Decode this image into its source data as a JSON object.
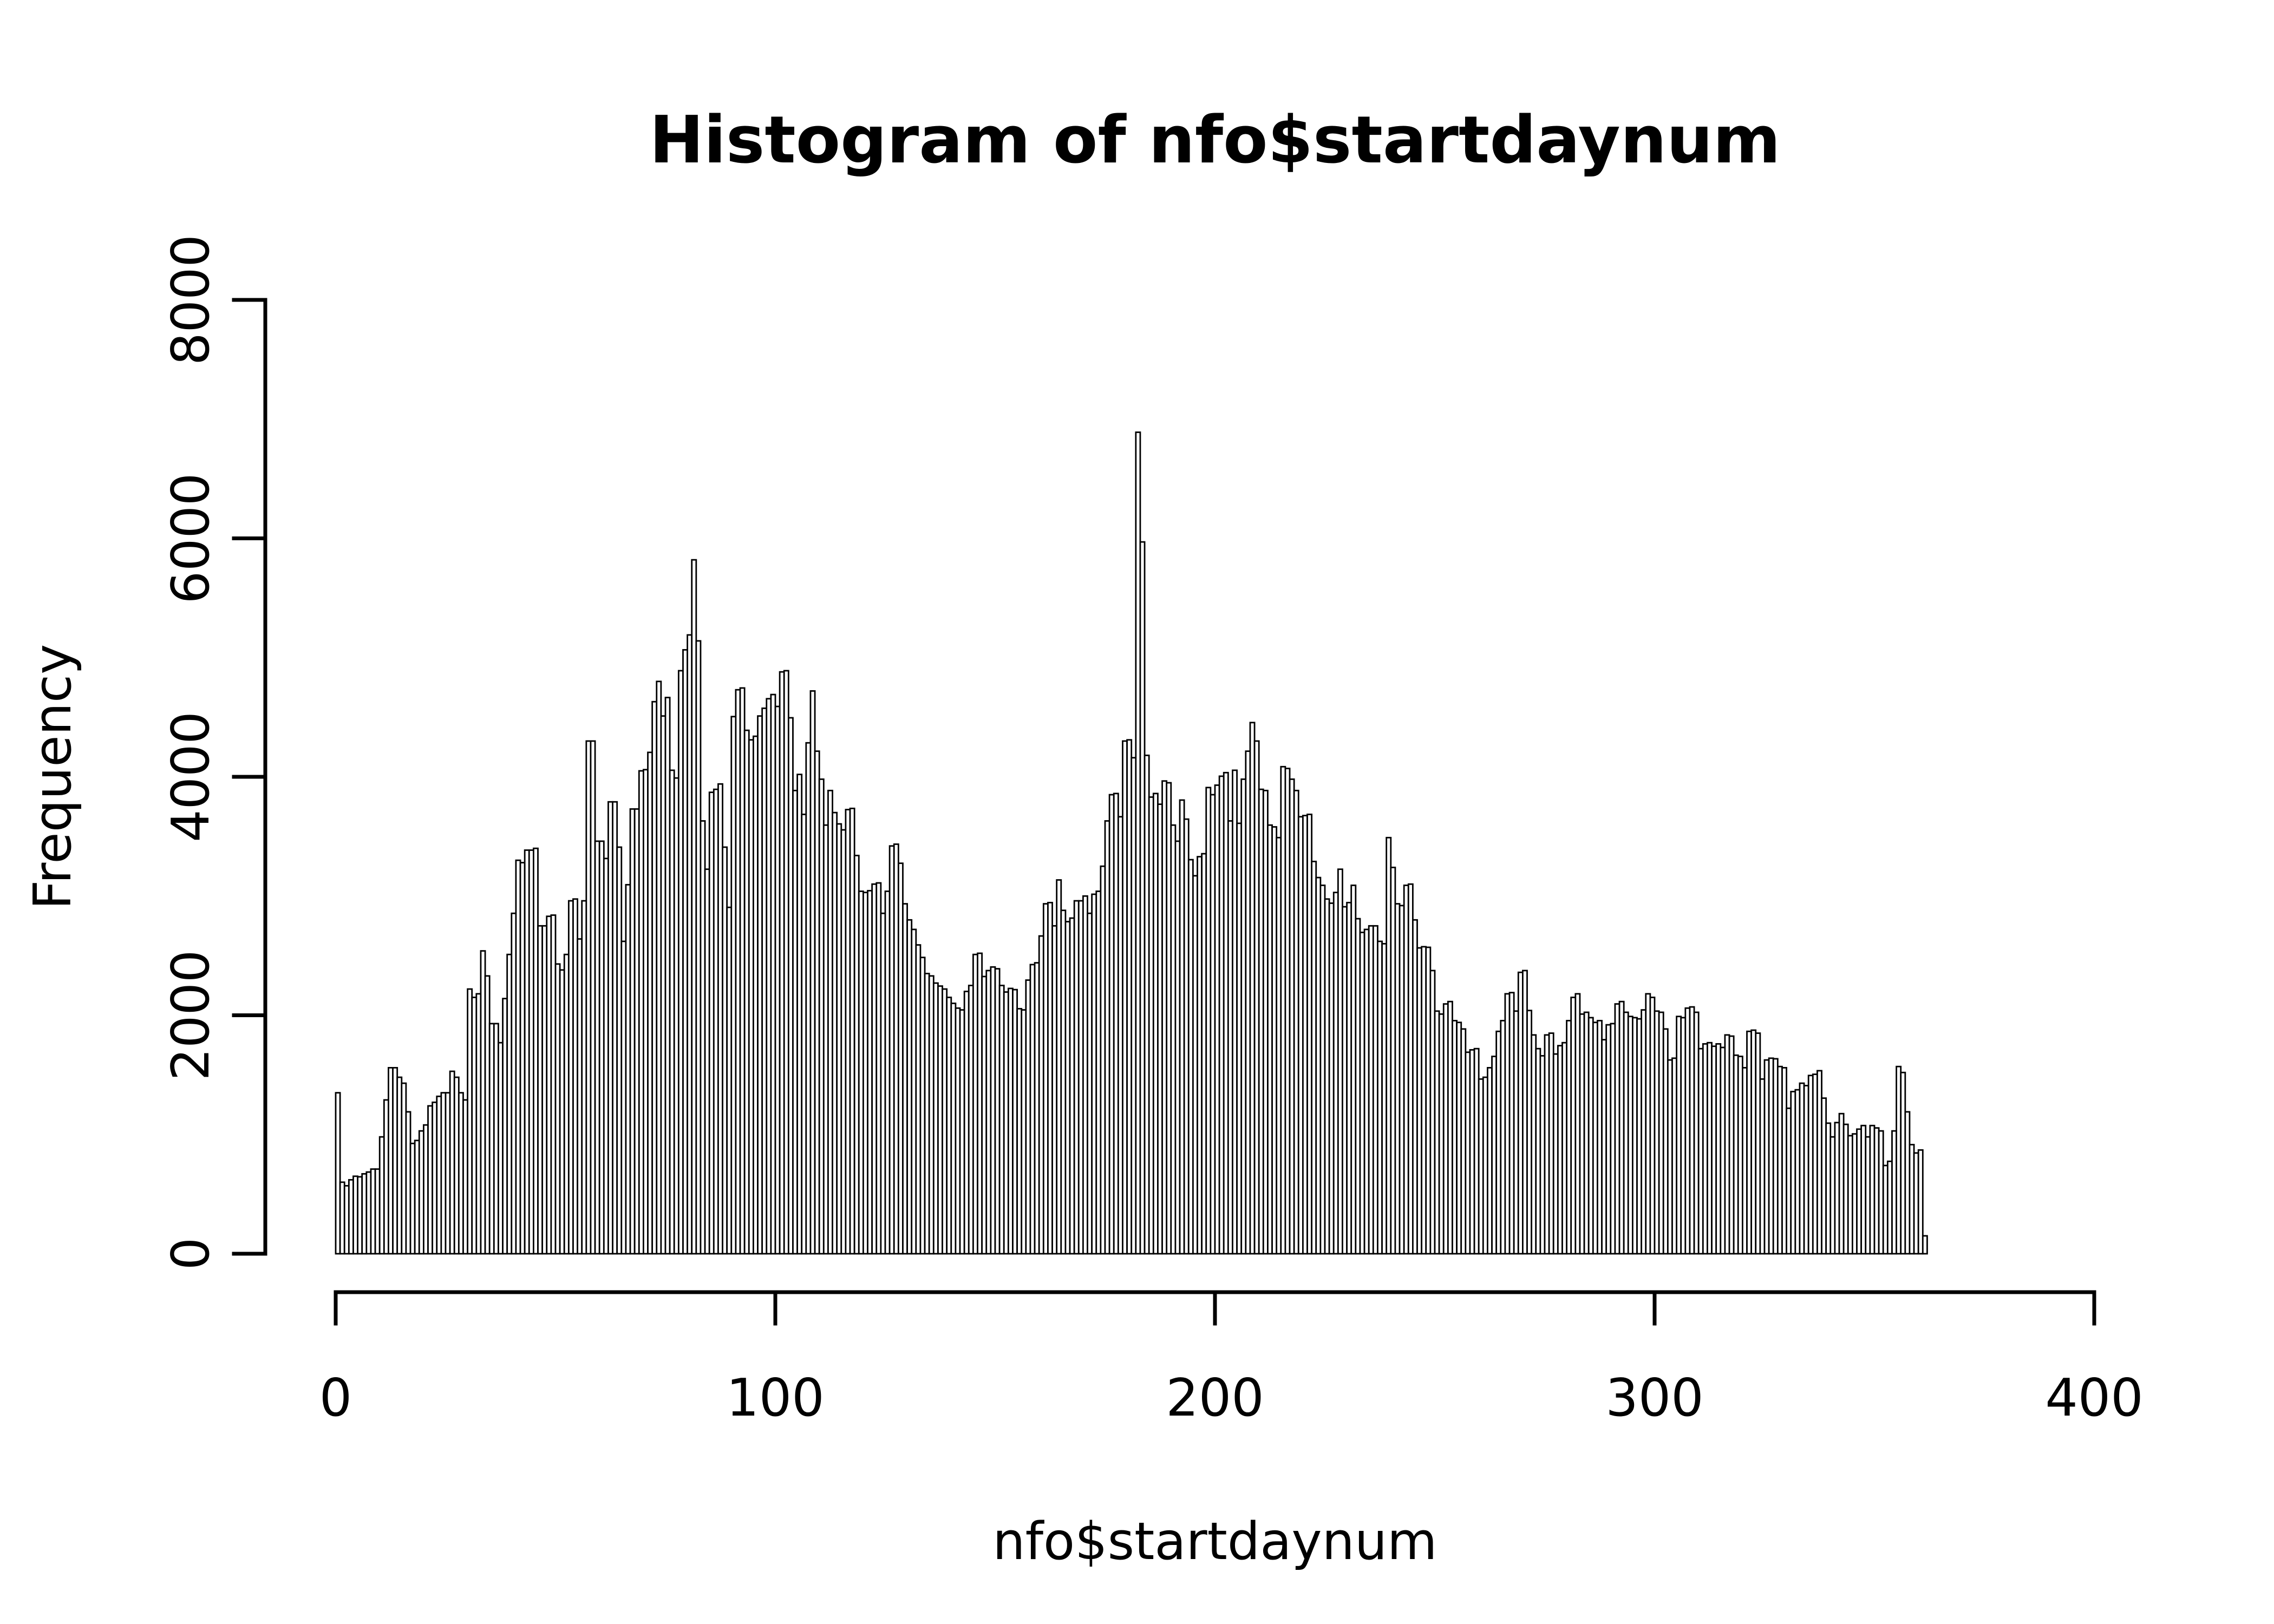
{
  "figure": {
    "background": "#ffffff",
    "foreground": "#000000"
  },
  "chart_data": {
    "type": "bar",
    "subtype": "histogram",
    "title": "Histogram of nfo$startdaynum",
    "xlabel": "nfo$startdaynum",
    "ylabel": "Frequency",
    "xlim": [
      0,
      400
    ],
    "ylim": [
      0,
      8000
    ],
    "x_ticks": [
      0,
      100,
      200,
      300,
      400
    ],
    "y_ticks": [
      0,
      2000,
      4000,
      6000,
      8000
    ],
    "grid": false,
    "legend": null,
    "bar_fill": "#ffffff",
    "bar_stroke": "#000000",
    "bin_start": 0,
    "bin_width": 1,
    "values": [
      1350,
      600,
      570,
      620,
      650,
      645,
      670,
      685,
      710,
      710,
      980,
      1290,
      1560,
      1560,
      1480,
      1430,
      1190,
      925,
      950,
      1030,
      1080,
      1240,
      1270,
      1320,
      1350,
      1350,
      1530,
      1480,
      1350,
      1290,
      2220,
      2150,
      2180,
      2540,
      2330,
      1930,
      1930,
      1770,
      2140,
      2510,
      2855,
      3300,
      3280,
      3385,
      3385,
      3400,
      2750,
      2750,
      2830,
      2840,
      2430,
      2380,
      2510,
      2960,
      2975,
      2640,
      2960,
      4300,
      4300,
      3460,
      3460,
      3315,
      3790,
      3790,
      3410,
      2620,
      3095,
      3730,
      3730,
      4050,
      4060,
      4205,
      4630,
      4800,
      4510,
      4665,
      4055,
      3990,
      4890,
      5065,
      5190,
      5820,
      5140,
      3630,
      3225,
      3870,
      3895,
      3940,
      3410,
      2905,
      4505,
      4730,
      4745,
      4390,
      4310,
      4340,
      4510,
      4575,
      4655,
      4690,
      4590,
      4880,
      4890,
      4495,
      3885,
      4020,
      3685,
      4285,
      4720,
      4215,
      3980,
      3595,
      3885,
      3700,
      3605,
      3555,
      3725,
      3735,
      3340,
      3040,
      3030,
      3045,
      3100,
      3110,
      2855,
      3040,
      3420,
      3435,
      3275,
      2935,
      2800,
      2720,
      2590,
      2485,
      2350,
      2330,
      2270,
      2245,
      2220,
      2150,
      2100,
      2060,
      2045,
      2200,
      2250,
      2510,
      2520,
      2325,
      2375,
      2405,
      2390,
      2250,
      2195,
      2225,
      2215,
      2055,
      2045,
      2295,
      2425,
      2440,
      2665,
      2935,
      2945,
      2750,
      3135,
      2880,
      2785,
      2815,
      2960,
      2960,
      3000,
      2855,
      3015,
      3040,
      3250,
      3630,
      3850,
      3860,
      3665,
      4300,
      4310,
      4160,
      6890,
      5970,
      4180,
      3830,
      3860,
      3770,
      3965,
      3950,
      3595,
      3460,
      3805,
      3645,
      3305,
      3170,
      3330,
      3355,
      3910,
      3850,
      3930,
      4005,
      4035,
      3630,
      4055,
      3610,
      3980,
      4215,
      4455,
      4300,
      3895,
      3885,
      3595,
      3580,
      3490,
      4085,
      4070,
      3980,
      3885,
      3665,
      3675,
      3685,
      3290,
      3155,
      3090,
      2975,
      2940,
      3030,
      3225,
      2910,
      2945,
      3090,
      2810,
      2695,
      2720,
      2750,
      2750,
      2620,
      2600,
      3490,
      3240,
      2935,
      2920,
      3090,
      3100,
      2800,
      2565,
      2575,
      2570,
      2375,
      2035,
      2010,
      2095,
      2115,
      1955,
      1940,
      1885,
      1690,
      1710,
      1720,
      1465,
      1480,
      1560,
      1655,
      1865,
      1955,
      2180,
      2190,
      2035,
      2360,
      2375,
      2040,
      1835,
      1720,
      1660,
      1835,
      1850,
      1675,
      1745,
      1770,
      1955,
      2150,
      2180,
      2010,
      2025,
      1980,
      1940,
      1955,
      1795,
      1920,
      1930,
      2095,
      2115,
      2025,
      1990,
      1980,
      1970,
      2045,
      2180,
      2150,
      2035,
      2025,
      1885,
      1625,
      1640,
      1990,
      1980,
      2060,
      2070,
      2025,
      1720,
      1760,
      1770,
      1740,
      1760,
      1730,
      1835,
      1825,
      1665,
      1655,
      1560,
      1865,
      1875,
      1850,
      1465,
      1625,
      1640,
      1635,
      1570,
      1560,
      1220,
      1360,
      1375,
      1430,
      1410,
      1495,
      1505,
      1535,
      1305,
      1095,
      980,
      1100,
      1175,
      1085,
      990,
      1005,
      1045,
      1075,
      980,
      1075,
      1055,
      1030,
      740,
      775,
      1030,
      1570,
      1520,
      1190,
      915,
      845,
      870,
      150
    ]
  }
}
